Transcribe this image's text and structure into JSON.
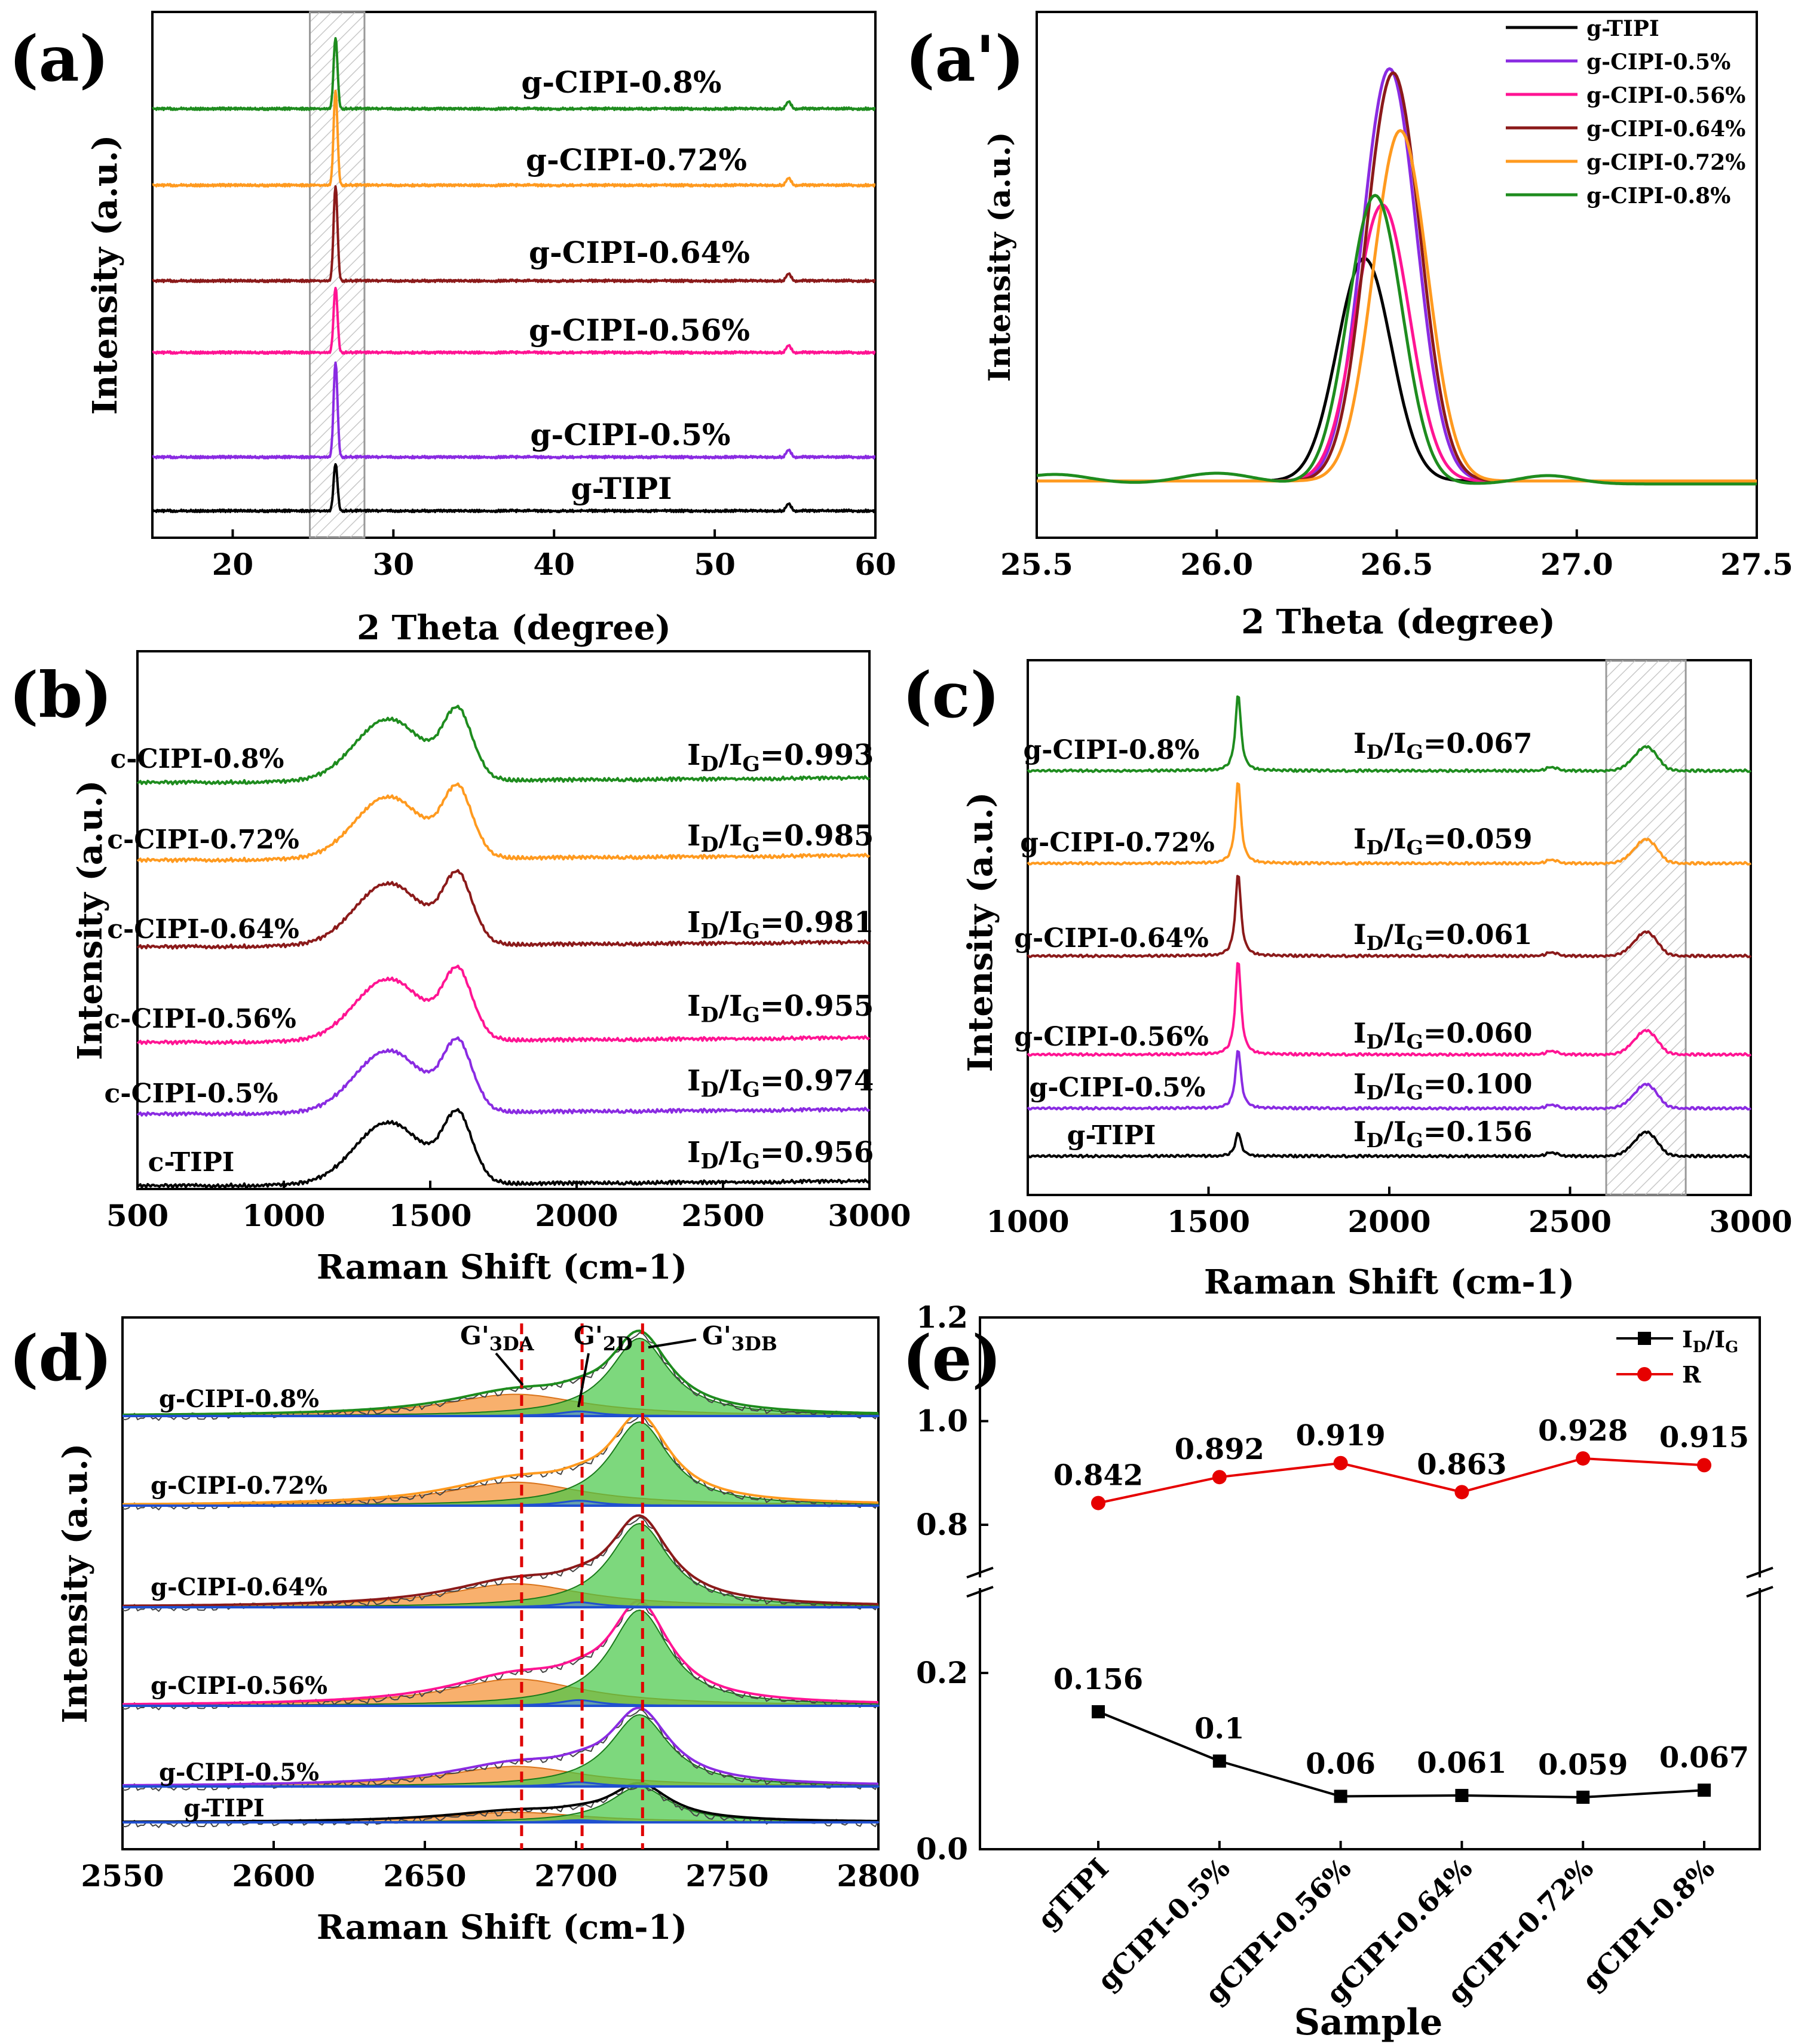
{
  "chart_data": [
    {
      "panel": "(a)",
      "type": "line",
      "title": "",
      "xlabel": "2 Theta (degree)",
      "ylabel": "Intensity (a.u.)",
      "xlim": [
        15,
        60
      ],
      "xticks": [
        "20",
        "30",
        "40",
        "50",
        "60"
      ],
      "highlight_band": [
        24.8,
        28.2
      ],
      "series": [
        {
          "name": "g-TIPI",
          "color": "#000000"
        },
        {
          "name": "g-CIPI-0.5%",
          "color": "#8a2be2"
        },
        {
          "name": "g-CIPI-0.56%",
          "color": "#ff1493"
        },
        {
          "name": "g-CIPI-0.64%",
          "color": "#8b1a1a"
        },
        {
          "name": "g-CIPI-0.72%",
          "color": "#ff9a1f"
        },
        {
          "name": "g-CIPI-0.8%",
          "color": "#1e8c1e"
        }
      ],
      "peaks_deg": [
        26.4,
        54.6
      ]
    },
    {
      "panel": "(a')",
      "type": "line",
      "xlabel": "2 Theta (degree)",
      "ylabel": "Intensity (a.u.)",
      "xlim": [
        25.5,
        27.5
      ],
      "xticks": [
        "25.5",
        "26.0",
        "26.5",
        "27.0",
        "27.5"
      ],
      "legend_position": "top-right",
      "series": [
        {
          "name": "g-TIPI",
          "color": "#000000",
          "peak": 26.41,
          "height": 0.54
        },
        {
          "name": "g-CIPI-0.5%",
          "color": "#8a2be2",
          "peak": 26.48,
          "height": 1.0
        },
        {
          "name": "g-CIPI-0.56%",
          "color": "#ff1493",
          "peak": 26.46,
          "height": 0.67
        },
        {
          "name": "g-CIPI-0.64%",
          "color": "#8b1a1a",
          "peak": 26.49,
          "height": 0.99
        },
        {
          "name": "g-CIPI-0.72%",
          "color": "#ff9a1f",
          "peak": 26.51,
          "height": 0.85
        },
        {
          "name": "g-CIPI-0.8%",
          "color": "#1e8c1e",
          "peak": 26.44,
          "height": 0.7
        }
      ]
    },
    {
      "panel": "(b)",
      "type": "line",
      "xlabel": "Raman Shift  (cm-1)",
      "ylabel": "Intensity (a.u.)",
      "xlim": [
        500,
        3000
      ],
      "xticks": [
        "500",
        "1000",
        "1500",
        "2000",
        "2500",
        "3000"
      ],
      "series": [
        {
          "name": "c-TIPI",
          "ratio": "ID/IG=0.956",
          "color": "#000000"
        },
        {
          "name": "c-CIPI-0.5%",
          "ratio": "ID/IG=0.974",
          "color": "#8a2be2"
        },
        {
          "name": "c-CIPI-0.56%",
          "ratio": "ID/IG=0.955",
          "color": "#ff1493"
        },
        {
          "name": "c-CIPI-0.64%",
          "ratio": "ID/IG=0.981",
          "color": "#8b1a1a"
        },
        {
          "name": "c-CIPI-0.72%",
          "ratio": "ID/IG=0.985",
          "color": "#ff9a1f"
        },
        {
          "name": "c-CIPI-0.8%",
          "ratio": "ID/IG=0.993",
          "color": "#1e8c1e"
        }
      ]
    },
    {
      "panel": "(c)",
      "type": "line",
      "xlabel": "Raman Shift (cm-1)",
      "ylabel": "Intensity (a.u.)",
      "xlim": [
        1000,
        3000
      ],
      "xticks": [
        "1000",
        "1500",
        "2000",
        "2500",
        "3000"
      ],
      "highlight_band": [
        2600,
        2820
      ],
      "series": [
        {
          "name": "g-TIPI",
          "ratio": "ID/IG=0.156",
          "color": "#000000"
        },
        {
          "name": "g-CIPI-0.5%",
          "ratio": "ID/IG=0.100",
          "color": "#8a2be2"
        },
        {
          "name": "g-CIPI-0.56%",
          "ratio": "ID/IG=0.060",
          "color": "#ff1493"
        },
        {
          "name": "g-CIPI-0.64%",
          "ratio": "ID/IG=0.061",
          "color": "#8b1a1a"
        },
        {
          "name": "g-CIPI-0.72%",
          "ratio": "ID/IG=0.059",
          "color": "#ff9a1f"
        },
        {
          "name": "g-CIPI-0.8%",
          "ratio": "ID/IG=0.067",
          "color": "#1e8c1e"
        }
      ]
    },
    {
      "panel": "(d)",
      "type": "area",
      "xlabel": "Raman Shift (cm-1)",
      "ylabel": "Intensity (a.u.)",
      "xlim": [
        2550,
        2800
      ],
      "xticks": [
        "2550",
        "2600",
        "2650",
        "2700",
        "2750",
        "2800"
      ],
      "reference_lines": [
        2682,
        2702,
        2722
      ],
      "annotations": [
        "G'3DA",
        "G'2D",
        "G'3DB"
      ],
      "series": [
        {
          "name": "g-TIPI",
          "color": "#000000"
        },
        {
          "name": "g-CIPI-0.5%",
          "color": "#8a2be2"
        },
        {
          "name": "g-CIPI-0.56%",
          "color": "#ff1493"
        },
        {
          "name": "g-CIPI-0.64%",
          "color": "#8b1a1a"
        },
        {
          "name": "g-CIPI-0.72%",
          "color": "#ff9a1f"
        },
        {
          "name": "g-CIPI-0.8%",
          "color": "#1e8c1e"
        }
      ]
    },
    {
      "panel": "(e)",
      "type": "line",
      "xlabel": "Sample",
      "ylabel": "",
      "categories": [
        "gTIPI",
        "gCIPI-0.5%",
        "gCIPI-0.56%",
        "gCIPI-0.64%",
        "gCIPI-0.72%",
        "gCIPI-0.8%"
      ],
      "ylim_lower": [
        0,
        0.3
      ],
      "ylim_upper": [
        0.7,
        1.2
      ],
      "yticks": [
        "0.0",
        "0.2",
        "0.8",
        "1.0",
        "1.2"
      ],
      "legend_position": "top-right",
      "series": [
        {
          "name": "ID/IG",
          "color": "#000000",
          "values": [
            0.156,
            0.1,
            0.06,
            0.061,
            0.059,
            0.067
          ],
          "labels": [
            "0.156",
            "0.1",
            "0.06",
            "0.061",
            "0.059",
            "0.067"
          ]
        },
        {
          "name": "R",
          "color": "#e60000",
          "values": [
            0.842,
            0.892,
            0.919,
            0.863,
            0.928,
            0.915
          ],
          "labels": [
            "0.842",
            "0.892",
            "0.919",
            "0.863",
            "0.928",
            "0.915"
          ]
        }
      ]
    }
  ]
}
